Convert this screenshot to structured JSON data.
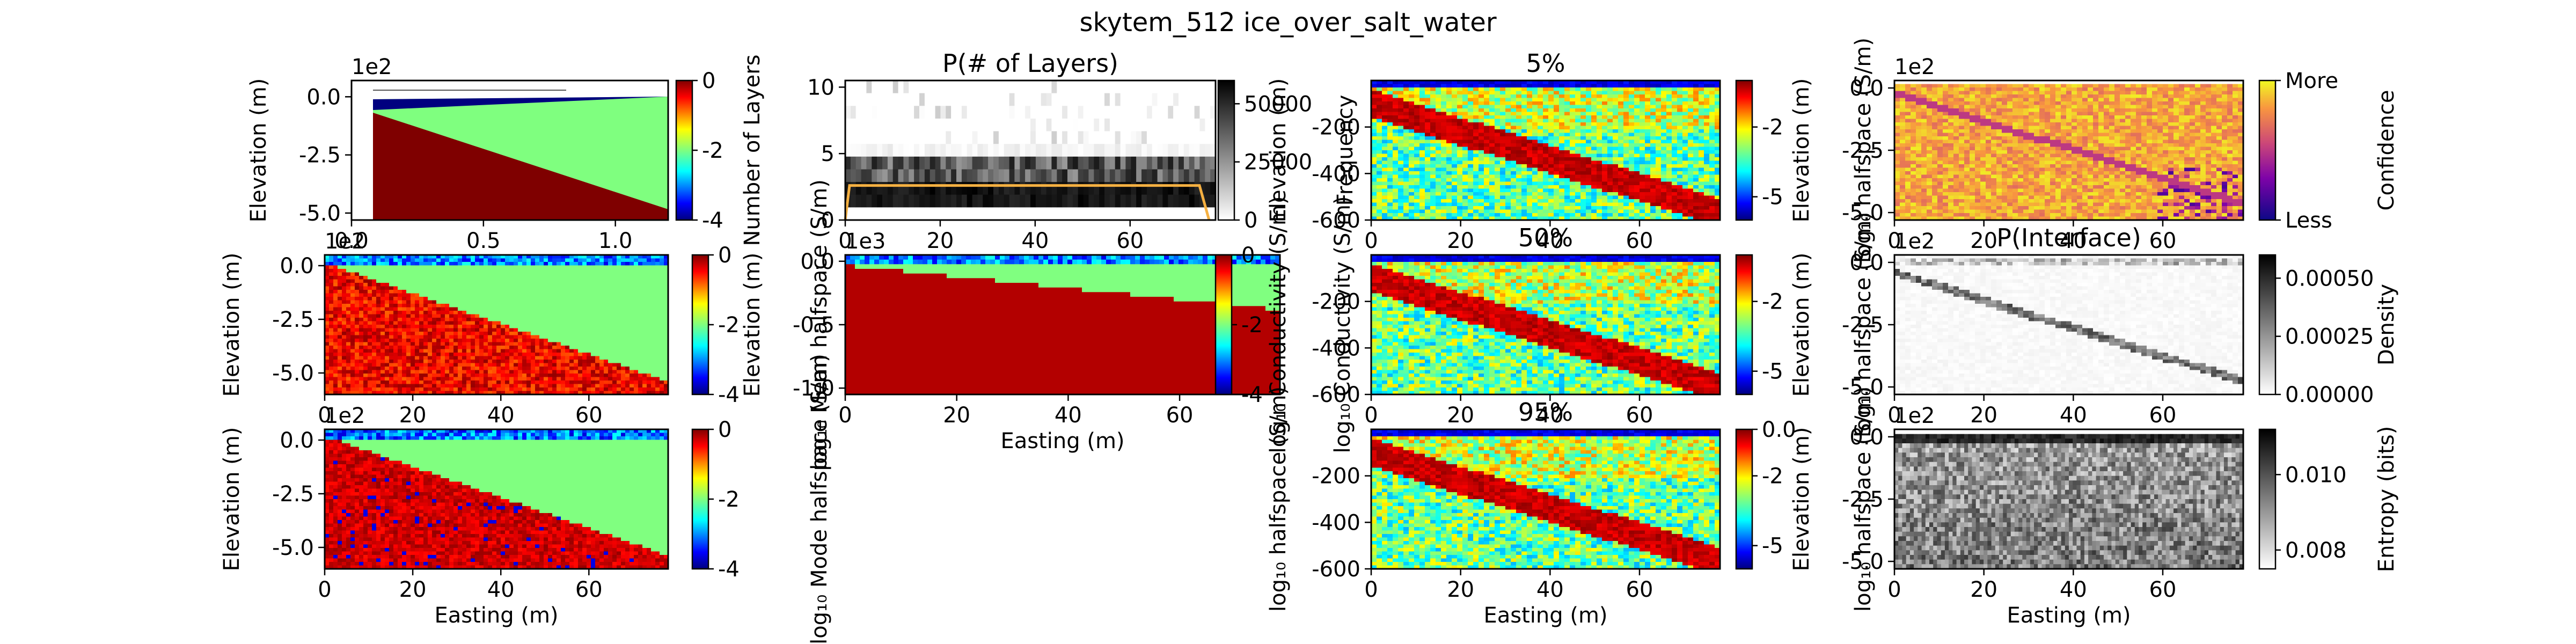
{
  "figure": {
    "title": "skytem_512 ice_over_salt_water"
  },
  "chart_data": [
    {
      "id": "model",
      "type": "heatmap",
      "title": "",
      "xlabel": "",
      "ylabel": "Elevation (m)",
      "xlim": [
        0,
        1.2
      ],
      "xticks": [
        "0.0",
        "0.5",
        "1.0"
      ],
      "ylim": [
        -5.3,
        0.7
      ],
      "yticks": [
        "0.0",
        "-2.5",
        "-5.0"
      ],
      "y_offset": "1e2",
      "colorbar": {
        "label": "",
        "ticks": [
          "0",
          "-2",
          "-4"
        ],
        "range": [
          -4,
          0
        ],
        "cmap": "jet"
      }
    },
    {
      "id": "n_layers",
      "type": "heatmap",
      "title": "P(# of Layers)",
      "xlabel": "",
      "ylabel": "Number of Layers",
      "xlim": [
        0,
        78
      ],
      "xticks": [
        "0",
        "20",
        "40",
        "60"
      ],
      "ylim": [
        0,
        10.5
      ],
      "yticks": [
        "0",
        "5",
        "10"
      ],
      "colorbar": {
        "label": "Frequency",
        "ticks": [
          "0",
          "25000",
          "50000"
        ],
        "range": [
          0,
          60000
        ],
        "cmap": "gray_r"
      }
    },
    {
      "id": "p5",
      "type": "heatmap",
      "title": "5%",
      "xlabel": "",
      "ylabel": "Elevation (m)",
      "xlim": [
        0,
        78
      ],
      "xticks": [
        "0",
        "20",
        "40",
        "60"
      ],
      "ylim": [
        -600,
        0
      ],
      "yticks": [
        "-200",
        "-400",
        "-600"
      ],
      "colorbar": {
        "label": "log₁₀ halfspace (S/m)",
        "ticks": [
          "-2",
          "-5"
        ],
        "range": [
          -6,
          0
        ],
        "cmap": "jet"
      }
    },
    {
      "id": "confidence",
      "type": "heatmap",
      "title": "",
      "xlabel": "",
      "ylabel": "Elevation (m)",
      "xlim": [
        0,
        78
      ],
      "xticks": [
        "0",
        "20",
        "40",
        "60"
      ],
      "ylim": [
        -5.3,
        0.3
      ],
      "yticks": [
        "0.0",
        "-2.5",
        "-5.0"
      ],
      "y_offset": "1e2",
      "colorbar": {
        "label": "Confidence",
        "ticks": [
          "More",
          "Less"
        ],
        "cmap": "plasma"
      }
    },
    {
      "id": "mean",
      "type": "heatmap",
      "title": "",
      "xlabel": "",
      "ylabel": "Elevation (m)",
      "xlim": [
        0,
        78
      ],
      "xticks": [
        "0",
        "20",
        "40",
        "60"
      ],
      "ylim": [
        -6,
        0.5
      ],
      "yticks": [
        "0.0",
        "-2.5",
        "-5.0"
      ],
      "y_offset": "1e2",
      "colorbar": {
        "label": "log₁₀ Mean halfspace (S/m)",
        "ticks": [
          "0",
          "-2",
          "-4"
        ],
        "range": [
          -4,
          0
        ],
        "cmap": "jet"
      }
    },
    {
      "id": "conductivity",
      "type": "heatmap",
      "title": "",
      "xlabel": "Easting (m)",
      "ylabel": "Elevation (m)",
      "xlim": [
        0,
        78
      ],
      "xticks": [
        "0",
        "20",
        "40",
        "60"
      ],
      "ylim": [
        -1.05,
        0.05
      ],
      "yticks": [
        "0.0",
        "-0.5",
        "-1.0"
      ],
      "y_offset": "1e3",
      "colorbar": {
        "label": "log₁₀ Conductivity (S/m)",
        "ticks": [
          "0",
          "-2",
          "-4"
        ],
        "range": [
          -4,
          0
        ],
        "cmap": "jet"
      }
    },
    {
      "id": "p50",
      "type": "heatmap",
      "title": "50%",
      "xlabel": "",
      "ylabel": "log₁₀ Conductivity (S/m)",
      "xlim": [
        0,
        78
      ],
      "xticks": [
        "0",
        "20",
        "40",
        "60"
      ],
      "ylim": [
        -600,
        0
      ],
      "yticks": [
        "-200",
        "-400",
        "-600"
      ],
      "colorbar": {
        "label": "log₁₀ halfspace (S/m)",
        "ticks": [
          "-2",
          "-5"
        ],
        "range": [
          -6,
          0
        ],
        "cmap": "jet"
      }
    },
    {
      "id": "interface",
      "type": "heatmap",
      "title": "P(Interface)",
      "xlabel": "",
      "ylabel": "Elevation (m)",
      "xlim": [
        0,
        78
      ],
      "xticks": [
        "0",
        "20",
        "40",
        "60"
      ],
      "ylim": [
        -5.3,
        0.3
      ],
      "yticks": [
        "0.0",
        "-2.5",
        "-5.0"
      ],
      "y_offset": "1e2",
      "colorbar": {
        "label": "Density",
        "ticks": [
          "0.00000",
          "0.00025",
          "0.00050"
        ],
        "range": [
          0,
          0.0006
        ],
        "cmap": "gray_r"
      }
    },
    {
      "id": "mode",
      "type": "heatmap",
      "title": "",
      "xlabel": "Easting (m)",
      "ylabel": "Elevation (m)",
      "xlim": [
        0,
        78
      ],
      "xticks": [
        "0",
        "20",
        "40",
        "60"
      ],
      "ylim": [
        -6,
        0.5
      ],
      "yticks": [
        "0.0",
        "-2.5",
        "-5.0"
      ],
      "y_offset": "1e2",
      "colorbar": {
        "label": "log₁₀ Mode halfspace (S/m)",
        "ticks": [
          "0",
          "-2",
          "-4"
        ],
        "range": [
          -4,
          0
        ],
        "cmap": "jet"
      }
    },
    {
      "id": "p95",
      "type": "heatmap",
      "title": "95%",
      "xlabel": "Easting (m)",
      "ylabel": "log₁₀ halfspace (S/m)",
      "xlim": [
        0,
        78
      ],
      "xticks": [
        "0",
        "20",
        "40",
        "60"
      ],
      "ylim": [
        -600,
        0
      ],
      "yticks": [
        "-200",
        "-400",
        "-600"
      ],
      "colorbar": {
        "label": "log₁₀ halfspace (S/m)",
        "ticks": [
          "0.0",
          "-2",
          "-5"
        ],
        "range": [
          -6,
          0
        ],
        "cmap": "jet"
      }
    },
    {
      "id": "entropy",
      "type": "heatmap",
      "title": "",
      "xlabel": "Easting (m)",
      "ylabel": "Elevation (m)",
      "xlim": [
        0,
        78
      ],
      "xticks": [
        "0",
        "20",
        "40",
        "60"
      ],
      "ylim": [
        -5.3,
        0.3
      ],
      "yticks": [
        "0.0",
        "-2.5",
        "-5.0"
      ],
      "y_offset": "1e2",
      "colorbar": {
        "label": "Entropy (bits)",
        "ticks": [
          "0.008",
          "0.010"
        ],
        "range": [
          0.0075,
          0.0112
        ],
        "cmap": "gray_r"
      }
    }
  ]
}
